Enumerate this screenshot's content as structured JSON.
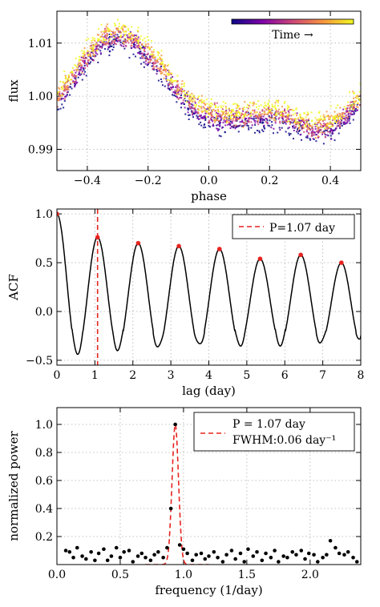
{
  "chart_data": [
    {
      "type": "scatter",
      "xlabel": "phase",
      "ylabel": "flux",
      "xlim": [
        -0.5,
        0.5
      ],
      "ylim": [
        0.986,
        1.016
      ],
      "xticks": [
        "−0.4",
        "−0.2",
        "0.0",
        "0.2",
        "0.4"
      ],
      "yticks": [
        "0.99",
        "1.00",
        "1.01"
      ],
      "grid": true,
      "colorbar": {
        "label": "Time →",
        "colormap": "plasma",
        "placement": "top-right",
        "colors": [
          "#0d0887",
          "#7e03a8",
          "#cc4778",
          "#f89540",
          "#f0f921"
        ]
      },
      "series": [
        {
          "x": [
            -0.5,
            -0.45,
            -0.4,
            -0.35,
            -0.3,
            -0.25,
            -0.2,
            -0.15,
            -0.1,
            -0.05,
            0.0,
            0.05,
            0.1,
            0.15,
            0.2,
            0.25,
            0.3,
            0.35,
            0.4,
            0.45,
            0.5
          ],
          "y_mean": [
            0.9995,
            1.003,
            1.0075,
            1.0105,
            1.0115,
            1.0105,
            1.008,
            1.0045,
            1.001,
            0.998,
            0.9965,
            0.996,
            0.996,
            0.9962,
            0.9965,
            0.9962,
            0.995,
            0.994,
            0.9945,
            0.9965,
            0.9995
          ],
          "y_spread": 0.0038
        }
      ]
    },
    {
      "type": "line",
      "xlabel": "lag (day)",
      "ylabel": "ACF",
      "xlim": [
        0,
        8
      ],
      "ylim": [
        -0.55,
        1.05
      ],
      "xticks": [
        "0",
        "1",
        "2",
        "3",
        "4",
        "5",
        "6",
        "7",
        "8"
      ],
      "yticks": [
        "−0.5",
        "0.0",
        "0.5",
        "1.0"
      ],
      "grid": true,
      "legend": {
        "label": "P=1.07 day",
        "placement": "top-right"
      },
      "period_line": {
        "x": 1.07,
        "color": "#e8231f"
      },
      "peaks": {
        "x": [
          0,
          1.07,
          2.14,
          3.21,
          4.28,
          5.35,
          6.42,
          7.49
        ],
        "y": [
          1.0,
          0.76,
          0.7,
          0.67,
          0.64,
          0.54,
          0.58,
          0.5
        ],
        "color": "#e8231f"
      },
      "minima": [
        -0.42,
        -0.38,
        -0.37,
        -0.35,
        -0.34,
        -0.33,
        -0.32,
        -0.3
      ]
    },
    {
      "type": "scatter",
      "xlabel": "frequency (1/day)",
      "ylabel": "normalized power",
      "xlim": [
        0.0,
        2.4
      ],
      "ylim": [
        0.0,
        1.12
      ],
      "xticks": [
        "0.0",
        "0.5",
        "1.0",
        "1.5",
        "2.0"
      ],
      "yticks": [
        "0.2",
        "0.4",
        "0.6",
        "0.8",
        "1.0"
      ],
      "grid": true,
      "legend": {
        "labels": [
          "P = 1.07 day",
          "FWHM:0.06 day⁻¹"
        ],
        "placement": "top-right"
      },
      "fit": {
        "type": "gaussian",
        "center": 0.935,
        "fwhm": 0.06,
        "amplitude": 1.0,
        "color": "#e8231f"
      },
      "points": {
        "x": [
          0.07,
          0.1,
          0.13,
          0.16,
          0.2,
          0.23,
          0.27,
          0.3,
          0.33,
          0.37,
          0.4,
          0.43,
          0.47,
          0.5,
          0.53,
          0.57,
          0.6,
          0.64,
          0.67,
          0.7,
          0.74,
          0.77,
          0.8,
          0.84,
          0.87,
          0.9,
          0.935,
          0.97,
          1.0,
          1.03,
          1.07,
          1.1,
          1.14,
          1.17,
          1.2,
          1.24,
          1.27,
          1.31,
          1.34,
          1.38,
          1.41,
          1.45,
          1.48,
          1.51,
          1.55,
          1.58,
          1.62,
          1.65,
          1.69,
          1.72,
          1.75,
          1.79,
          1.82,
          1.86,
          1.89,
          1.93,
          1.96,
          1.99,
          2.03,
          2.06,
          2.1,
          2.13,
          2.16,
          2.2,
          2.23,
          2.27,
          2.3,
          2.34,
          2.37
        ],
        "y": [
          0.1,
          0.09,
          0.05,
          0.12,
          0.06,
          0.04,
          0.09,
          0.03,
          0.08,
          0.11,
          0.03,
          0.06,
          0.12,
          0.05,
          0.09,
          0.1,
          0.02,
          0.06,
          0.08,
          0.05,
          0.03,
          0.07,
          0.09,
          0.05,
          0.12,
          0.4,
          1.0,
          0.14,
          0.11,
          0.08,
          0.03,
          0.07,
          0.08,
          0.04,
          0.06,
          0.09,
          0.05,
          0.02,
          0.07,
          0.1,
          0.04,
          0.08,
          0.02,
          0.11,
          0.06,
          0.09,
          0.03,
          0.08,
          0.05,
          0.1,
          0.02,
          0.06,
          0.05,
          0.09,
          0.07,
          0.1,
          0.04,
          0.08,
          0.07,
          0.02,
          0.05,
          0.07,
          0.17,
          0.12,
          0.08,
          0.07,
          0.09,
          0.05,
          0.02
        ]
      }
    }
  ]
}
